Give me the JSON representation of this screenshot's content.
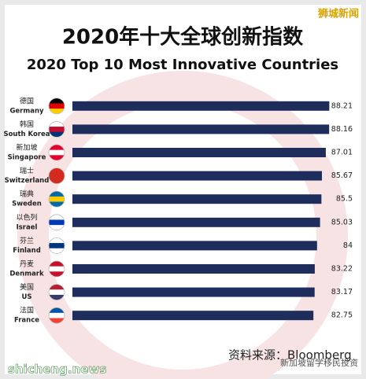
{
  "chart_data": {
    "type": "bar",
    "orientation": "horizontal",
    "title": "2020年十大全球创新指数",
    "subtitle": "2020 Top 10 Most Innovative Countries",
    "categories_zh": [
      "德国",
      "韩国",
      "新加坡",
      "瑞士",
      "瑞典",
      "以色列",
      "芬兰",
      "丹麦",
      "美国",
      "法国"
    ],
    "categories": [
      "Germany",
      "South Korea",
      "Singapore",
      "Switzerland",
      "Sweden",
      "Israel",
      "Finland",
      "Denmark",
      "US",
      "France"
    ],
    "values": [
      88.21,
      88.16,
      87.01,
      85.67,
      85.5,
      85.03,
      84,
      83.22,
      83.17,
      82.75
    ],
    "color": "#1f2d5c",
    "xlim": [
      0,
      90
    ],
    "source": "资料来源：Bloomberg",
    "watermark": "狮城新闻",
    "site": "shicheng.news",
    "account": "新加坡留学移民投资"
  }
}
